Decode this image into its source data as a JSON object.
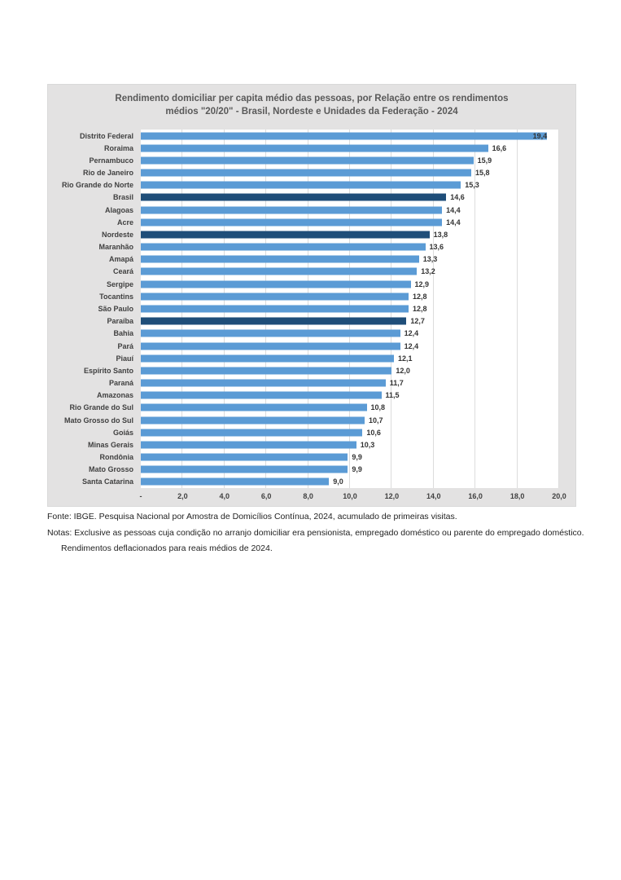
{
  "chart": {
    "title_line1": "Rendimento domiciliar per capita médio das pessoas, por Relação entre os rendimentos",
    "title_line2": "médios \"20/20\" -  Brasil, Nordeste e Unidades da Federação - 2024"
  },
  "chart_data": {
    "type": "bar",
    "orientation": "horizontal",
    "title": "Rendimento domiciliar per capita médio das pessoas, por Relação entre os rendimentos médios \"20/20\" -  Brasil, Nordeste e Unidades da Federação - 2024",
    "categories": [
      "Distrito Federal",
      "Roraima",
      "Pernambuco",
      "Rio de Janeiro",
      "Rio Grande do Norte",
      "Brasil",
      "Alagoas",
      "Acre",
      "Nordeste",
      "Maranhão",
      "Amapá",
      "Ceará",
      "Sergipe",
      "Tocantins",
      "São Paulo",
      "Paraíba",
      "Bahia",
      "Pará",
      "Piauí",
      "Espírito Santo",
      "Paraná",
      "Amazonas",
      "Rio Grande do Sul",
      "Mato Grosso do Sul",
      "Goiás",
      "Minas Gerais",
      "Rondônia",
      "Mato Grosso",
      "Santa Catarina"
    ],
    "values": [
      19.4,
      16.6,
      15.9,
      15.8,
      15.3,
      14.6,
      14.4,
      14.4,
      13.8,
      13.6,
      13.3,
      13.2,
      12.9,
      12.8,
      12.8,
      12.7,
      12.4,
      12.4,
      12.1,
      12.0,
      11.7,
      11.5,
      10.8,
      10.7,
      10.6,
      10.3,
      9.9,
      9.9,
      9.0
    ],
    "value_labels": [
      "19,4",
      "16,6",
      "15,9",
      "15,8",
      "15,3",
      "14,6",
      "14,4",
      "14,4",
      "13,8",
      "13,6",
      "13,3",
      "13,2",
      "12,9",
      "12,8",
      "12,8",
      "12,7",
      "12,4",
      "12,4",
      "12,1",
      "12,0",
      "11,7",
      "11,5",
      "10,8",
      "10,7",
      "10,6",
      "10,3",
      "9,9",
      "9,9",
      "9,0"
    ],
    "highlighted_categories": [
      "Brasil",
      "Nordeste",
      "Paraíba"
    ],
    "highlight_indices": [
      5,
      8,
      15
    ],
    "xlim": [
      0,
      20
    ],
    "x_ticks": [
      0,
      2,
      4,
      6,
      8,
      10,
      12,
      14,
      16,
      18,
      20
    ],
    "x_tick_labels": [
      "-",
      "2,0",
      "4,0",
      "6,0",
      "8,0",
      "10,0",
      "12,0",
      "14,0",
      "16,0",
      "18,0",
      "20,0"
    ],
    "grid": true,
    "legend": "none",
    "colors": {
      "bar": "#5b9bd5",
      "highlight": "#1f4e79",
      "chart_background": "#e3e2e2",
      "plot_background": "#ffffff",
      "gridline": "#dcdcdc",
      "title_text": "#595959",
      "label_text": "#404040"
    }
  },
  "footnotes": {
    "fonte": "Fonte: IBGE. Pesquisa Nacional por Amostra de Domicílios Contínua, 2024, acumulado de primeiras visitas.",
    "notas": "Notas: Exclusive as pessoas cuja condição no arranjo domiciliar era pensionista, empregado doméstico ou parente do empregado doméstico.",
    "nota2": "Rendimentos deflacionados para reais médios de 2024."
  }
}
